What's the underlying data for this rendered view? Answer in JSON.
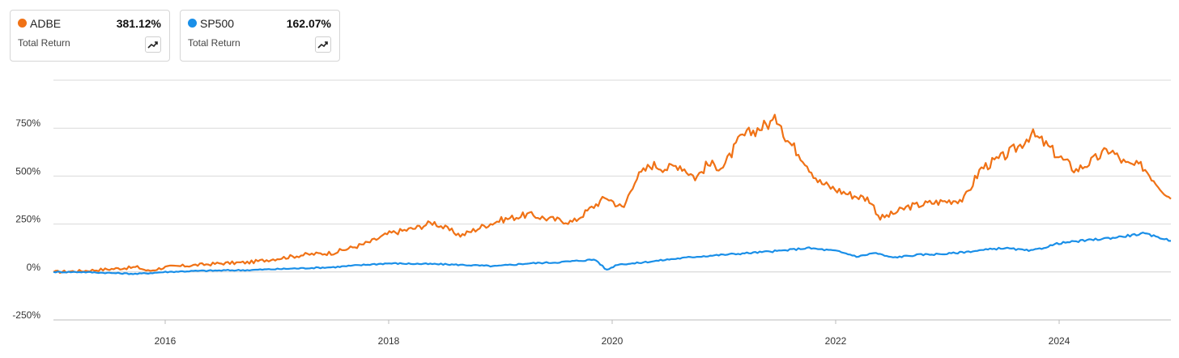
{
  "legend": [
    {
      "ticker": "ADBE",
      "value": "381.12%",
      "subtitle": "Total Return",
      "color": "#f07216",
      "icon": "trend-up-icon"
    },
    {
      "ticker": "SP500",
      "value": "162.07%",
      "subtitle": "Total Return",
      "color": "#1a8fe8",
      "icon": "trend-up-icon"
    }
  ],
  "chart_data": {
    "type": "line",
    "title": "",
    "xlabel": "",
    "ylabel": "",
    "ylim": [
      -250,
      1000
    ],
    "xlim": [
      2015.0,
      2025.0
    ],
    "y_ticks": [
      -250,
      0,
      250,
      500,
      750
    ],
    "y_tick_labels": [
      "-250%",
      "0%",
      "250%",
      "500%",
      "750%"
    ],
    "x_ticks": [
      2016,
      2018,
      2020,
      2022,
      2024
    ],
    "x_tick_labels": [
      "2016",
      "2018",
      "2020",
      "2022",
      "2024"
    ],
    "grid": true,
    "series": [
      {
        "name": "ADBE",
        "color": "#f07216",
        "x": [
          2015.0,
          2015.25,
          2015.5,
          2015.75,
          2015.85,
          2016.0,
          2016.25,
          2016.5,
          2016.75,
          2017.0,
          2017.25,
          2017.5,
          2017.75,
          2017.85,
          2018.0,
          2018.25,
          2018.4,
          2018.5,
          2018.65,
          2018.85,
          2019.0,
          2019.25,
          2019.4,
          2019.65,
          2019.85,
          2019.95,
          2020.1,
          2020.2,
          2020.35,
          2020.5,
          2020.6,
          2020.75,
          2020.85,
          2021.0,
          2021.15,
          2021.35,
          2021.5,
          2021.55,
          2021.7,
          2021.85,
          2022.0,
          2022.15,
          2022.3,
          2022.4,
          2022.5,
          2022.65,
          2022.85,
          2023.0,
          2023.15,
          2023.3,
          2023.5,
          2023.65,
          2023.75,
          2023.85,
          2024.0,
          2024.15,
          2024.3,
          2024.45,
          2024.6,
          2024.75,
          2024.85,
          2025.0
        ],
        "values": [
          0,
          5,
          15,
          25,
          5,
          25,
          35,
          45,
          50,
          70,
          90,
          100,
          140,
          160,
          200,
          230,
          260,
          230,
          190,
          240,
          270,
          300,
          280,
          260,
          350,
          390,
          330,
          480,
          560,
          540,
          560,
          490,
          560,
          550,
          700,
          760,
          800,
          700,
          600,
          470,
          430,
          400,
          380,
          280,
          300,
          340,
          360,
          370,
          380,
          540,
          600,
          660,
          720,
          680,
          600,
          530,
          580,
          640,
          560,
          550,
          480,
          381
        ]
      },
      {
        "name": "SP500",
        "color": "#1a8fe8",
        "x": [
          2015.0,
          2015.25,
          2015.5,
          2015.75,
          2016.0,
          2016.25,
          2016.5,
          2016.75,
          2017.0,
          2017.5,
          2017.85,
          2018.0,
          2018.5,
          2018.75,
          2018.95,
          2019.25,
          2019.5,
          2019.85,
          2019.95,
          2020.05,
          2020.2,
          2020.5,
          2020.75,
          2021.0,
          2021.25,
          2021.5,
          2021.75,
          2022.0,
          2022.2,
          2022.35,
          2022.5,
          2022.75,
          2023.0,
          2023.25,
          2023.5,
          2023.75,
          2023.85,
          2024.0,
          2024.25,
          2024.5,
          2024.75,
          2024.9,
          2025.0
        ],
        "values": [
          0,
          0,
          -5,
          -10,
          0,
          5,
          8,
          10,
          15,
          25,
          40,
          45,
          40,
          35,
          30,
          45,
          50,
          65,
          10,
          40,
          45,
          65,
          80,
          90,
          100,
          110,
          125,
          110,
          80,
          100,
          75,
          90,
          95,
          110,
          125,
          110,
          125,
          150,
          165,
          180,
          200,
          180,
          162
        ]
      }
    ]
  }
}
